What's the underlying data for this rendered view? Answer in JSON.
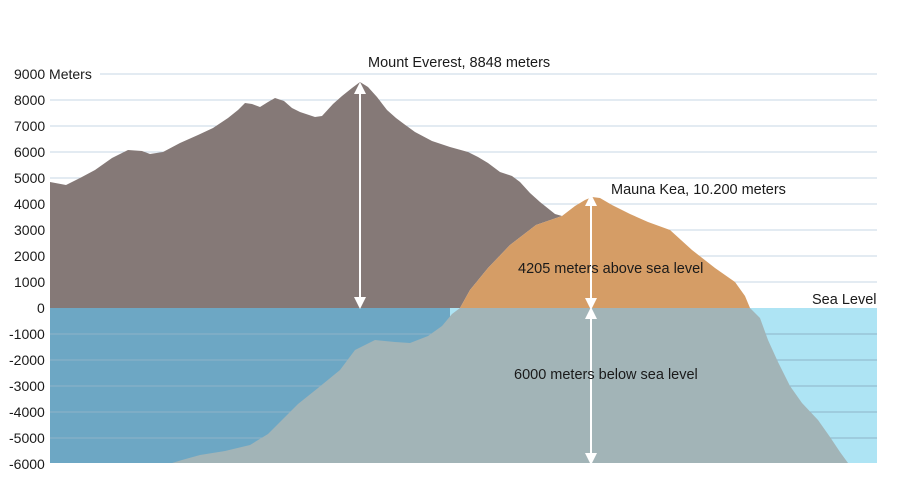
{
  "y_axis": {
    "unit_label": "Meters",
    "ticks": [
      "9000",
      "8000",
      "7000",
      "6000",
      "5000",
      "4000",
      "3000",
      "2000",
      "1000",
      "0",
      "-1000",
      "-2000",
      "-3000",
      "-4000",
      "-5000",
      "-6000"
    ],
    "top_tick_text": "9000 Meters"
  },
  "annotations": {
    "everest": "Mount Everest, 8848 meters",
    "mauna_kea": "Mauna Kea, 10.200 meters",
    "above": "4205 meters above sea level",
    "below": "6000 meters below sea level",
    "sea_level": "Sea Level"
  },
  "colors": {
    "everest": "#857977",
    "mauna_kea_above": "#d59d66",
    "mauna_kea_below": "#a2b4b7",
    "ocean_left": "#6da7c4",
    "ocean_right": "#aee4f4",
    "arrow": "#ffffff"
  }
}
